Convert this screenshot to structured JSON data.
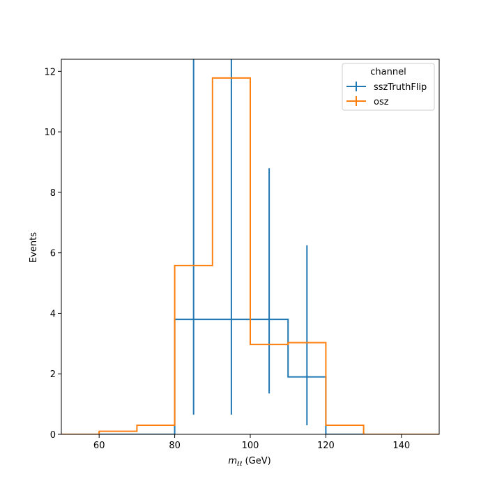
{
  "chart_data": {
    "type": "histogram-step",
    "xlabel_main": "m",
    "xlabel_sub": "ℓℓ",
    "xlabel_unit": " (GeV)",
    "ylabel": "Events",
    "xlim": [
      50,
      150
    ],
    "ylim": [
      0,
      12.4
    ],
    "xticks": [
      60,
      80,
      100,
      120,
      140
    ],
    "yticks": [
      0,
      2,
      4,
      6,
      8,
      10,
      12
    ],
    "grid": false,
    "legend": {
      "title": "channel",
      "placement": "top-right",
      "entries": [
        "sszTruthFlip",
        "osz"
      ]
    },
    "bin_edges": [
      50,
      60,
      70,
      80,
      90,
      100,
      110,
      120,
      130,
      140,
      150
    ],
    "series": [
      {
        "name": "sszTruthFlip",
        "color": "#1f77b4",
        "values": [
          0,
          0,
          0,
          3.8,
          3.8,
          3.8,
          1.9,
          0,
          0,
          0
        ],
        "errors": [
          {
            "x": 85,
            "low": 0.65,
            "high": 12.4
          },
          {
            "x": 95,
            "low": 0.65,
            "high": 12.4
          },
          {
            "x": 105,
            "low": 1.35,
            "high": 8.8
          },
          {
            "x": 115,
            "low": 0.3,
            "high": 6.25
          }
        ]
      },
      {
        "name": "osz",
        "color": "#ff7f0e",
        "values": [
          0,
          0.1,
          0.3,
          5.58,
          11.78,
          2.97,
          3.03,
          0.3,
          0,
          0
        ],
        "errors": []
      }
    ]
  }
}
